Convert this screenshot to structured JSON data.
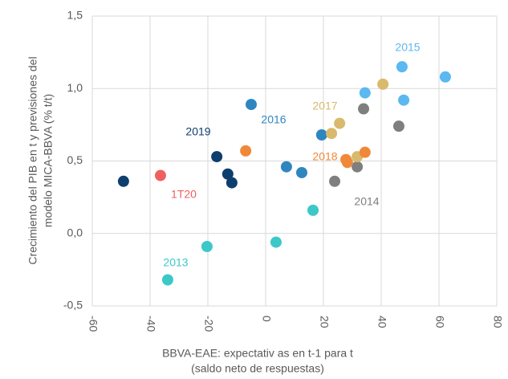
{
  "chart_data": {
    "type": "scatter",
    "ylabel": [
      "Crecimiento del PIB en t y previsiones del",
      "modelo MICA-BBVA  (% t/t)"
    ],
    "xlabel": [
      "BBVA-EAE: expectativ as en t-1 para t",
      "(saldo neto de respuestas)"
    ],
    "xlim": [
      -60,
      80
    ],
    "xticks": [
      -60,
      -40,
      -20,
      0,
      20,
      40,
      60,
      80
    ],
    "ylim": [
      -0.5,
      1.5
    ],
    "yticks": [
      {
        "value": -0.5,
        "label": "-0,5"
      },
      {
        "value": 0,
        "label": "0,0"
      },
      {
        "value": 0.5,
        "label": "0,5"
      },
      {
        "value": 1.0,
        "label": "1,0"
      },
      {
        "value": 1.5,
        "label": "1,5"
      }
    ],
    "grid": true,
    "series": [
      {
        "name": "2013",
        "color": "#3cc8c8",
        "x": [
          -33.9,
          -20.3,
          3.6,
          16.4
        ],
        "values": [
          -0.32,
          -0.09,
          -0.06,
          0.16
        ]
      },
      {
        "name": "2014",
        "color": "#7f7f7f",
        "x": [
          23.9,
          31.7,
          33.9,
          46.1
        ],
        "values": [
          0.36,
          0.46,
          0.86,
          0.74
        ]
      },
      {
        "name": "2015",
        "color": "#5bb8f0",
        "x": [
          34.4,
          47.2,
          47.8,
          62.2
        ],
        "values": [
          0.97,
          1.15,
          0.92,
          1.08
        ]
      },
      {
        "name": "2016",
        "color": "#2e86c1",
        "x": [
          -5.0,
          7.2,
          12.5,
          19.4
        ],
        "values": [
          0.89,
          0.46,
          0.42,
          0.68
        ]
      },
      {
        "name": "2017",
        "color": "#d9b96b",
        "x": [
          22.8,
          25.6,
          40.6,
          31.7
        ],
        "values": [
          0.69,
          0.76,
          1.03,
          0.53
        ]
      },
      {
        "name": "2018",
        "color": "#f0883a",
        "x": [
          -6.9,
          27.8,
          28.3,
          34.4
        ],
        "values": [
          0.57,
          0.51,
          0.49,
          0.56
        ]
      },
      {
        "name": "2019",
        "color": "#0d3f6e",
        "x": [
          -49.2,
          -16.9,
          -13.1,
          -11.7
        ],
        "values": [
          0.36,
          0.53,
          0.41,
          0.35
        ]
      },
      {
        "name": "1T20",
        "color": "#f06060",
        "x": [
          -36.4
        ],
        "values": [
          0.4
        ]
      }
    ]
  }
}
